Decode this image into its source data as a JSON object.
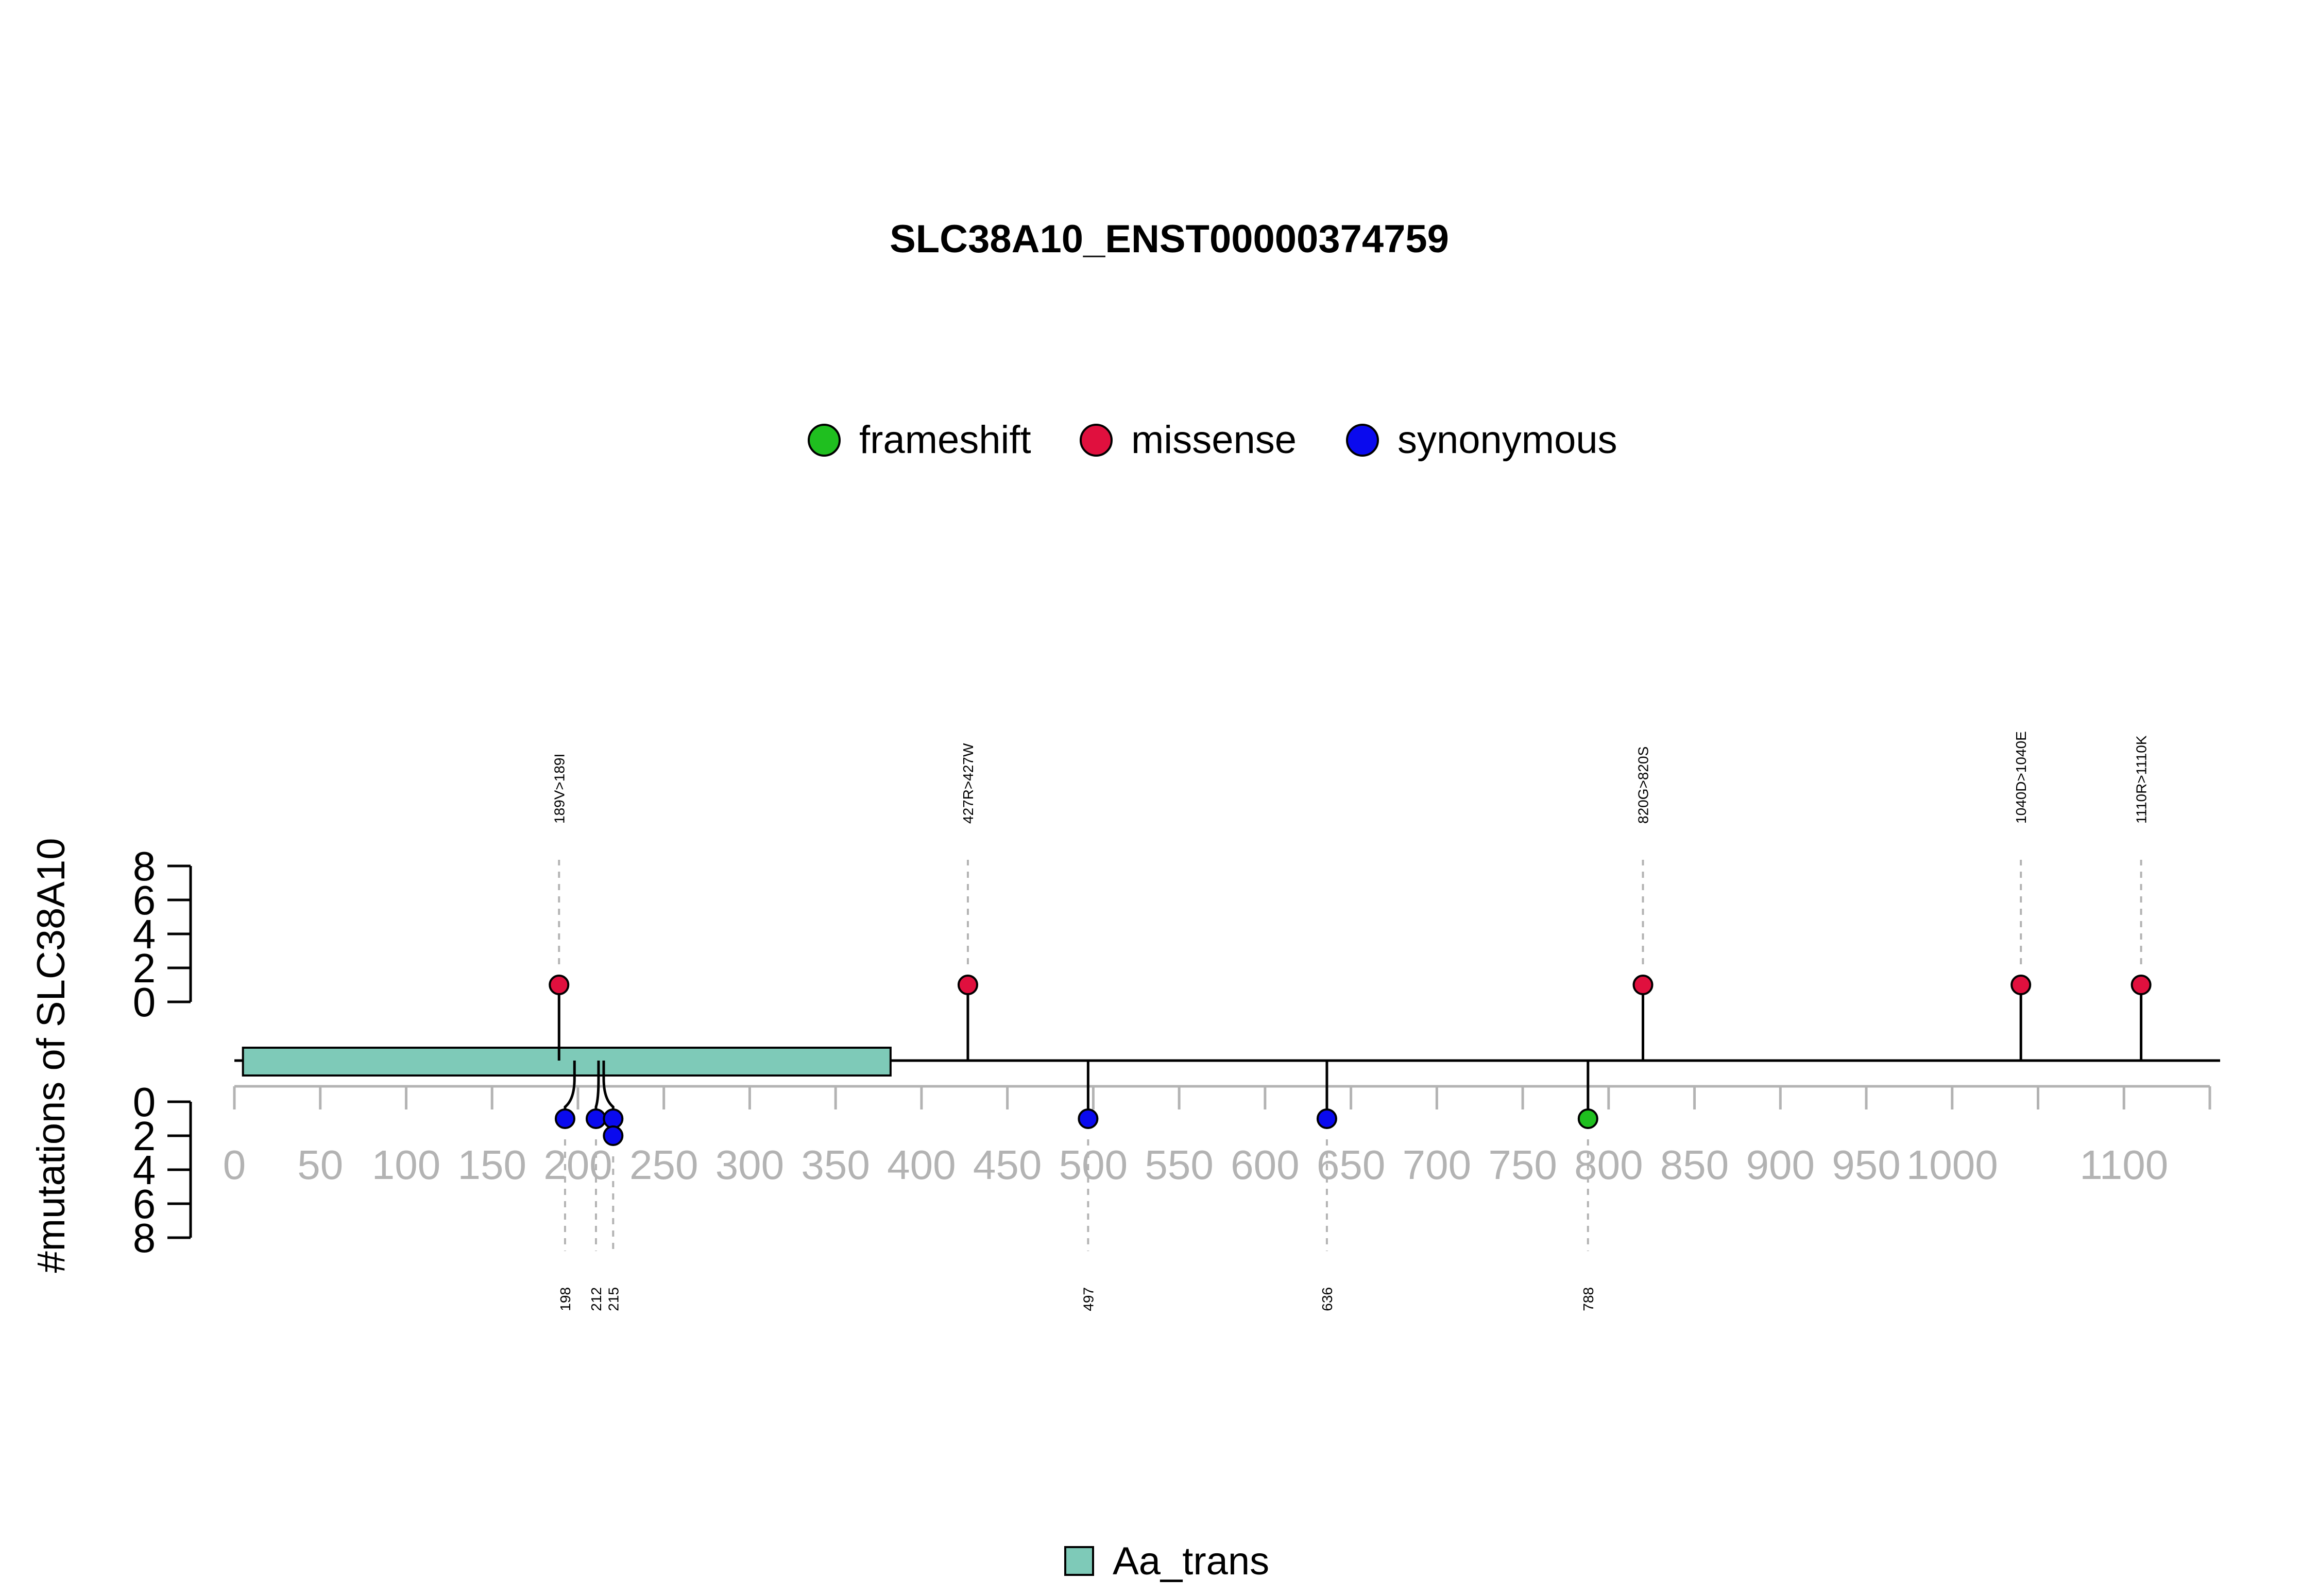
{
  "chart_data": {
    "type": "lollipop",
    "title": "SLC38A10_ENST00000374759",
    "ylabel": "#mutations of SLC38A10",
    "xlim": [
      0,
      1150
    ],
    "x_ticks": [
      0,
      50,
      100,
      150,
      200,
      250,
      300,
      350,
      400,
      450,
      500,
      550,
      600,
      650,
      700,
      750,
      800,
      850,
      900,
      950,
      1000,
      1100
    ],
    "x_minor_ticks": [
      1050,
      1150
    ],
    "y_ticks_top": [
      0,
      2,
      4,
      6,
      8
    ],
    "y_ticks_bottom": [
      0,
      2,
      4,
      6,
      8
    ],
    "ylim": [
      0,
      8
    ],
    "legend": {
      "position": "top-center",
      "items": [
        {
          "label": "frameshift",
          "color": "#1fbf1f"
        },
        {
          "label": "missense",
          "color": "#e0103e"
        },
        {
          "label": "synonymous",
          "color": "#0a0aee"
        }
      ]
    },
    "domains": [
      {
        "name": "Aa_trans",
        "start": 5,
        "end": 382,
        "color": "#7ecab8"
      }
    ],
    "domain_legend": [
      {
        "label": "Aa_trans",
        "color": "#7ecab8"
      }
    ],
    "mutations_top": [
      {
        "position": 189,
        "label": "189V>189I",
        "type": "missense",
        "count": 1
      },
      {
        "position": 427,
        "label": "427R>427W",
        "type": "missense",
        "count": 1
      },
      {
        "position": 820,
        "label": "820G>820S",
        "type": "missense",
        "count": 1
      },
      {
        "position": 1040,
        "label": "1040D>1040E",
        "type": "missense",
        "count": 1
      },
      {
        "position": 1110,
        "label": "1110R>1110K",
        "type": "missense",
        "count": 1
      }
    ],
    "mutations_bottom": [
      {
        "position": 198,
        "label": "198",
        "type": "synonymous",
        "count": 1
      },
      {
        "position": 212,
        "label": "212",
        "type": "synonymous",
        "count": 1
      },
      {
        "position": 215,
        "label": "215",
        "type": "synonymous",
        "count": 2
      },
      {
        "position": 497,
        "label": "497",
        "type": "synonymous",
        "count": 1
      },
      {
        "position": 636,
        "label": "636",
        "type": "synonymous",
        "count": 1
      },
      {
        "position": 788,
        "label": "788",
        "type": "frameshift",
        "count": 1
      }
    ]
  }
}
